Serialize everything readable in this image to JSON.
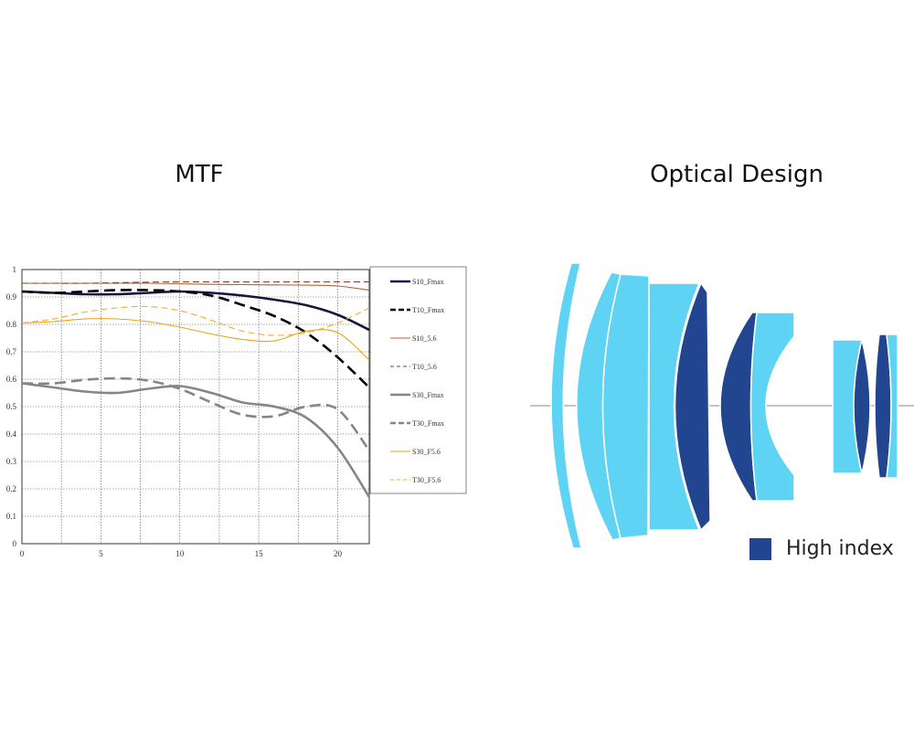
{
  "titles": {
    "left": "MTF",
    "right": "Optical Design"
  },
  "legend_high_index": {
    "label": "High index",
    "color": "#22458f"
  },
  "element_colors": {
    "low_index": "#5fd3f3",
    "high_index": "#22458f"
  },
  "chart_data": {
    "type": "line",
    "title": "MTF",
    "xlim": [
      0,
      22
    ],
    "ylim": [
      0,
      1
    ],
    "xticks": [
      0,
      5,
      10,
      15,
      20
    ],
    "xtick_labels": [
      "0",
      "5",
      "10",
      "15",
      "20"
    ],
    "yticks": [
      0,
      0.1,
      0.2,
      0.3,
      0.4,
      0.5,
      0.6,
      0.7,
      0.8,
      0.9,
      1
    ],
    "ytick_labels": [
      "0",
      "0.1",
      "0.2",
      "0.3",
      "0.4",
      "0.5",
      "0.6",
      "0.7",
      "0.8",
      "0.9",
      "1"
    ],
    "grid": true,
    "legend_position": "right",
    "x": [
      0,
      2,
      4,
      6,
      8,
      10,
      12,
      14,
      16,
      18,
      20,
      22
    ],
    "series": [
      {
        "name": "S10_Fmax",
        "color": "#151540",
        "style": "solid",
        "weight": "heavy",
        "values": [
          0.92,
          0.915,
          0.91,
          0.91,
          0.915,
          0.92,
          0.915,
          0.905,
          0.89,
          0.87,
          0.835,
          0.78
        ]
      },
      {
        "name": "T10_Fmax",
        "color": "#000000",
        "style": "dashed",
        "weight": "heavy",
        "values": [
          0.92,
          0.915,
          0.92,
          0.925,
          0.925,
          0.92,
          0.905,
          0.87,
          0.83,
          0.77,
          0.68,
          0.57
        ]
      },
      {
        "name": "S10_5.6",
        "color": "#b8603a",
        "style": "solid",
        "weight": "thin",
        "values": [
          0.95,
          0.95,
          0.95,
          0.95,
          0.95,
          0.948,
          0.946,
          0.945,
          0.944,
          0.943,
          0.94,
          0.925
        ]
      },
      {
        "name": "T10_5.6",
        "color": "#8b3a2a",
        "style": "dashed",
        "weight": "thin",
        "values": [
          0.95,
          0.95,
          0.95,
          0.952,
          0.954,
          0.955,
          0.955,
          0.955,
          0.955,
          0.955,
          0.955,
          0.955
        ]
      },
      {
        "name": "S30_Fmax",
        "color": "#868686",
        "style": "solid",
        "weight": "heavy",
        "values": [
          0.585,
          0.57,
          0.555,
          0.55,
          0.565,
          0.575,
          0.55,
          0.515,
          0.5,
          0.46,
          0.35,
          0.17
        ]
      },
      {
        "name": "T30_Fmax",
        "color": "#868686",
        "style": "dashed",
        "weight": "heavy",
        "values": [
          0.585,
          0.585,
          0.598,
          0.603,
          0.595,
          0.565,
          0.515,
          0.47,
          0.465,
          0.5,
          0.49,
          0.34
        ]
      },
      {
        "name": "S30_F5.6",
        "color": "#e9a312",
        "style": "solid",
        "weight": "thin",
        "values": [
          0.805,
          0.81,
          0.82,
          0.82,
          0.81,
          0.79,
          0.765,
          0.745,
          0.74,
          0.775,
          0.77,
          0.67
        ]
      },
      {
        "name": "T30_F5.6",
        "color": "#f0ad2a",
        "style": "dashed",
        "weight": "thin",
        "values": [
          0.805,
          0.82,
          0.845,
          0.86,
          0.865,
          0.85,
          0.815,
          0.775,
          0.76,
          0.77,
          0.805,
          0.86
        ]
      }
    ]
  }
}
